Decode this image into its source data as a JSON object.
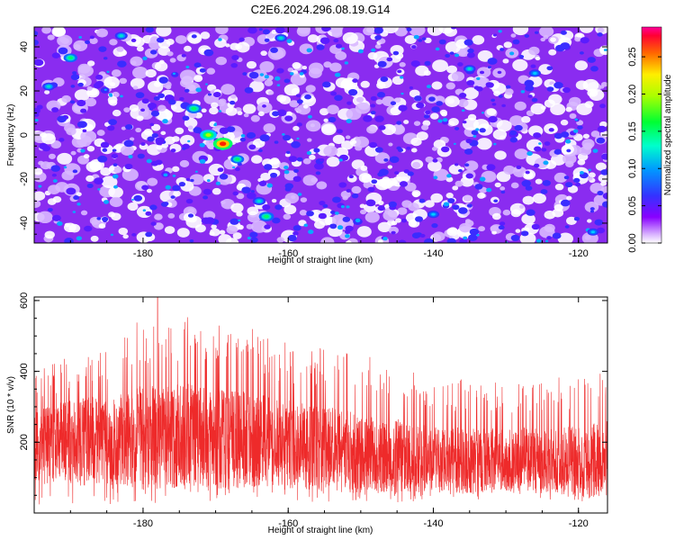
{
  "title": "C2E6.2024.296.08.19.G14",
  "colors": {
    "snr_line": "#ee2a2a",
    "axis": "#000000",
    "background": "#ffffff"
  },
  "chart_data": [
    {
      "type": "heatmap",
      "xlabel": "Height of straight line (km)",
      "ylabel": "Frequency (Hz)",
      "xlim": [
        -195,
        -116
      ],
      "ylim": [
        -49,
        49
      ],
      "x_ticks": [
        -180,
        -160,
        -140,
        -120
      ],
      "y_ticks": [
        -40,
        -20,
        0,
        20,
        40
      ],
      "colorbar": {
        "label": "Normalized spectral amplitude",
        "range": [
          0,
          0.29
        ],
        "ticks": [
          0.0,
          0.05,
          0.1,
          0.15,
          0.2,
          0.25
        ],
        "tick_labels": [
          "0.00",
          "0.05",
          "0.10",
          "0.15",
          "0.20",
          "0.25"
        ],
        "colormap": [
          "#ffffff",
          "#cc88ff",
          "#7700ff",
          "#3344ff",
          "#00ccff",
          "#00ff88",
          "#66ff00",
          "#ffff00",
          "#ff8800",
          "#ff2200",
          "#ff0088"
        ]
      },
      "hotspots": [
        {
          "x": -169,
          "y": -4,
          "value": 0.27
        },
        {
          "x": -171,
          "y": 0,
          "value": 0.2
        },
        {
          "x": -173,
          "y": 12,
          "value": 0.16
        },
        {
          "x": -163,
          "y": -37,
          "value": 0.16
        },
        {
          "x": -164,
          "y": -30,
          "value": 0.11
        },
        {
          "x": -190,
          "y": 35,
          "value": 0.13
        },
        {
          "x": -183,
          "y": 45,
          "value": 0.1
        },
        {
          "x": -193,
          "y": 22,
          "value": 0.1
        },
        {
          "x": -167,
          "y": -11,
          "value": 0.12
        },
        {
          "x": -161,
          "y": 44,
          "value": 0.09
        },
        {
          "x": -135,
          "y": 30,
          "value": 0.09
        },
        {
          "x": -126,
          "y": 28,
          "value": 0.08
        },
        {
          "x": -140,
          "y": -36,
          "value": 0.08
        },
        {
          "x": -118,
          "y": -44,
          "value": 0.07
        }
      ]
    },
    {
      "type": "line",
      "xlabel": "Height of straight line (km)",
      "ylabel": "SNR (10 * v/v)",
      "xlim": [
        -195,
        -116
      ],
      "ylim": [
        0,
        610
      ],
      "x_ticks": [
        -180,
        -160,
        -140,
        -120
      ],
      "y_ticks": [
        200,
        400,
        600
      ],
      "envelope": {
        "x": [
          -195,
          -190,
          -185,
          -180,
          -175,
          -170,
          -165,
          -160,
          -155,
          -150,
          -145,
          -140,
          -135,
          -130,
          -125,
          -120,
          -116
        ],
        "upper": [
          400,
          450,
          480,
          560,
          560,
          540,
          520,
          480,
          470,
          450,
          420,
          370,
          380,
          370,
          380,
          390,
          420
        ],
        "lower": [
          20,
          20,
          25,
          15,
          20,
          20,
          25,
          25,
          30,
          30,
          30,
          30,
          30,
          30,
          30,
          30,
          20
        ],
        "center": [
          190,
          200,
          210,
          215,
          220,
          210,
          205,
          195,
          180,
          170,
          160,
          150,
          145,
          145,
          150,
          145,
          150
        ]
      },
      "peak": {
        "x": -178,
        "y": 610
      }
    }
  ]
}
